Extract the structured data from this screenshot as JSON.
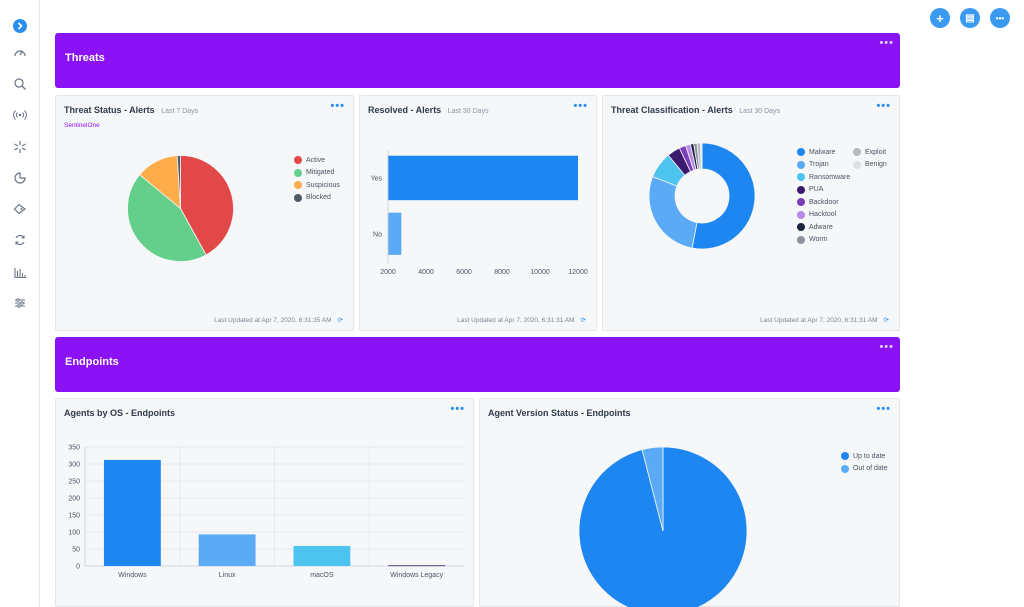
{
  "top_actions": {
    "add": "+",
    "clipboard": "▤",
    "more": "•••"
  },
  "sections": {
    "threats": {
      "title": "Threats",
      "dots": "•••"
    },
    "endpoints": {
      "title": "Endpoints",
      "dots": "•••"
    }
  },
  "threat_status": {
    "title": "Threat Status - Alerts",
    "subtitle": "Last 7 Days",
    "source": "SentinelOne",
    "updated": "Last Updated at Apr 7, 2020, 6:31:35 AM",
    "legend": [
      {
        "label": "Active",
        "color": "#e34848"
      },
      {
        "label": "Mitigated",
        "color": "#63cf8a"
      },
      {
        "label": "Suspicious",
        "color": "#ffac4a"
      },
      {
        "label": "Blocked",
        "color": "#4f5b66"
      }
    ]
  },
  "resolved": {
    "title": "Resolved - Alerts",
    "subtitle": "Last 30 Days",
    "updated": "Last Updated at Apr 7, 2020, 6:31:31 AM"
  },
  "classification": {
    "title": "Threat Classification - Alerts",
    "subtitle": "Last 30 Days",
    "updated": "Last Updated at Apr 7, 2020, 6:31:31 AM",
    "legend_left": [
      {
        "label": "Malware",
        "color": "#1e86f0"
      },
      {
        "label": "Trojan",
        "color": "#5aaaf5"
      },
      {
        "label": "Ransomware",
        "color": "#4dc3f0"
      },
      {
        "label": "PUA",
        "color": "#3b1b6e"
      },
      {
        "label": "Backdoor",
        "color": "#7a3fb8"
      },
      {
        "label": "Hacktool",
        "color": "#b98be6"
      },
      {
        "label": "Adware",
        "color": "#1a2540"
      },
      {
        "label": "Worm",
        "color": "#8b929c"
      }
    ],
    "legend_right": [
      {
        "label": "Exploit",
        "color": "#b5bac2"
      },
      {
        "label": "Benign",
        "color": "#dcdfe3"
      }
    ]
  },
  "agents_os": {
    "title": "Agents by OS - Endpoints"
  },
  "agent_version": {
    "title": "Agent Version Status - Endpoints",
    "legend": [
      {
        "label": "Up to date",
        "color": "#1e86f0"
      },
      {
        "label": "Out of date",
        "color": "#5aaaf5"
      }
    ]
  },
  "chart_data": [
    {
      "type": "pie",
      "categories": [
        "Active",
        "Mitigated",
        "Suspicious",
        "Blocked"
      ],
      "values": [
        42,
        44,
        13,
        1
      ],
      "colors": [
        "#e34848",
        "#63cf8a",
        "#ffac4a",
        "#4f5b66"
      ]
    },
    {
      "type": "bar",
      "orientation": "horizontal",
      "categories": [
        "Yes",
        "No"
      ],
      "values": [
        12000,
        2700
      ],
      "xlim": [
        2000,
        12000
      ],
      "xticks": [
        2000,
        4000,
        6000,
        8000,
        10000,
        12000
      ],
      "colors": [
        "#1e86f0",
        "#5aaaf5"
      ]
    },
    {
      "type": "pie",
      "donut": true,
      "categories": [
        "Malware",
        "Trojan",
        "Ransomware",
        "PUA",
        "Backdoor",
        "Hacktool",
        "Adware",
        "Worm",
        "Exploit",
        "Benign"
      ],
      "values": [
        53,
        28,
        8,
        4,
        2,
        1.5,
        1,
        1,
        1,
        0.5
      ],
      "colors": [
        "#1e86f0",
        "#5aaaf5",
        "#4dc3f0",
        "#3b1b6e",
        "#7a3fb8",
        "#b98be6",
        "#1a2540",
        "#8b929c",
        "#b5bac2",
        "#dcdfe3"
      ]
    },
    {
      "type": "bar",
      "categories": [
        "Windows",
        "Linux",
        "macOS",
        "Windows Legacy"
      ],
      "values": [
        312,
        93,
        59,
        2
      ],
      "ylim": [
        0,
        350
      ],
      "yticks": [
        0,
        50,
        100,
        150,
        200,
        250,
        300,
        350
      ],
      "colors": [
        "#1e86f0",
        "#5aaaf5",
        "#4dc3f0",
        "#3b1b6e"
      ]
    },
    {
      "type": "pie",
      "categories": [
        "Up to date",
        "Out of date"
      ],
      "values": [
        96,
        4
      ],
      "colors": [
        "#1e86f0",
        "#5aaaf5"
      ]
    }
  ]
}
